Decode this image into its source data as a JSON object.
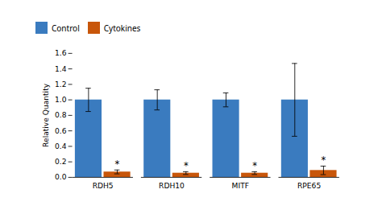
{
  "chart_data": {
    "type": "bar",
    "categories": [
      "RDH5",
      "RDH10",
      "MITF",
      "RPE65"
    ],
    "series": [
      {
        "name": "Control",
        "color": "#3a7bbf",
        "values": [
          1.0,
          1.0,
          1.0,
          1.0
        ],
        "errors": [
          0.15,
          0.13,
          0.09,
          0.47
        ]
      },
      {
        "name": "Cytokines",
        "color": "#c8560a",
        "values": [
          0.07,
          0.055,
          0.055,
          0.09
        ],
        "errors": [
          0.025,
          0.018,
          0.018,
          0.055
        ]
      }
    ],
    "ylabel": "Relative Quantity",
    "ylim": [
      0,
      1.6
    ],
    "yticks": [
      {
        "value": 0,
        "label": "0.0"
      },
      0.2,
      0.4,
      0.6,
      0.8,
      {
        "value": 1.0,
        "label": "1.0"
      },
      1.2,
      1.4,
      1.6
    ],
    "annotations": [
      {
        "text": "*",
        "series": "Cytokines",
        "category": "RDH5"
      },
      {
        "text": "*",
        "series": "Cytokines",
        "category": "RDH10"
      },
      {
        "text": "*",
        "series": "Cytokines",
        "category": "MITF"
      },
      {
        "text": "*",
        "series": "Cytokines",
        "category": "RPE65"
      }
    ],
    "legend": "top",
    "grid": false
  }
}
